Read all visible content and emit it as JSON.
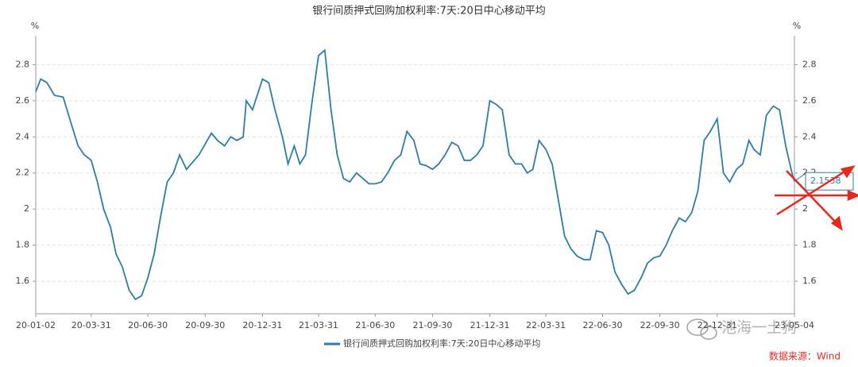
{
  "chart_data": {
    "type": "line",
    "title": "银行间质押式回购加权利率:7天:20日中心移动平均",
    "y_unit": "%",
    "y2_unit": "%",
    "x": [
      "20-01-02",
      "20-01-10",
      "20-01-20",
      "20-02-01",
      "20-02-15",
      "20-03-01",
      "20-03-10",
      "20-03-20",
      "20-03-31",
      "20-04-10",
      "20-04-20",
      "20-05-01",
      "20-05-10",
      "20-05-20",
      "20-05-31",
      "20-06-10",
      "20-06-20",
      "20-06-30",
      "20-07-10",
      "20-07-20",
      "20-07-31",
      "20-08-10",
      "20-08-20",
      "20-08-31",
      "20-09-10",
      "20-09-20",
      "20-09-30",
      "20-10-10",
      "20-10-20",
      "20-10-31",
      "20-11-10",
      "20-11-20",
      "20-11-30",
      "20-12-05",
      "20-12-15",
      "20-12-31",
      "21-01-10",
      "21-01-20",
      "21-02-01",
      "21-02-10",
      "21-02-20",
      "21-03-01",
      "21-03-10",
      "21-03-20",
      "21-03-31",
      "21-04-10",
      "21-04-20",
      "21-04-30",
      "21-05-10",
      "21-05-20",
      "21-05-31",
      "21-06-10",
      "21-06-20",
      "21-06-30",
      "21-07-10",
      "21-07-20",
      "21-07-31",
      "21-08-10",
      "21-08-20",
      "21-08-31",
      "21-09-10",
      "21-09-20",
      "21-09-30",
      "21-10-10",
      "21-10-20",
      "21-10-31",
      "21-11-10",
      "21-11-20",
      "21-11-30",
      "21-12-10",
      "21-12-20",
      "21-12-31",
      "22-01-10",
      "22-01-20",
      "22-01-31",
      "22-02-10",
      "22-02-20",
      "22-03-01",
      "22-03-10",
      "22-03-20",
      "22-03-31",
      "22-04-10",
      "22-04-20",
      "22-04-30",
      "22-05-10",
      "22-05-20",
      "22-05-31",
      "22-06-10",
      "22-06-20",
      "22-06-30",
      "22-07-10",
      "22-07-20",
      "22-07-31",
      "22-08-10",
      "22-08-20",
      "22-08-31",
      "22-09-10",
      "22-09-20",
      "22-09-30",
      "22-10-10",
      "22-10-20",
      "22-10-31",
      "22-11-10",
      "22-11-20",
      "22-11-30",
      "22-12-10",
      "22-12-20",
      "22-12-31",
      "23-01-10",
      "23-01-20",
      "23-01-31",
      "23-02-10",
      "23-02-20",
      "23-02-28",
      "23-03-10",
      "23-03-20",
      "23-03-31",
      "23-04-10",
      "23-04-20",
      "23-04-30",
      "23-05-04"
    ],
    "series": [
      {
        "name": "银行间质押式回购加权利率:7天:20日中心移动平均",
        "color": "#2e7ca8",
        "values": [
          2.65,
          2.72,
          2.7,
          2.63,
          2.62,
          2.45,
          2.35,
          2.3,
          2.27,
          2.15,
          2.0,
          1.9,
          1.75,
          1.68,
          1.55,
          1.5,
          1.52,
          1.62,
          1.75,
          1.95,
          2.15,
          2.2,
          2.3,
          2.22,
          2.26,
          2.3,
          2.36,
          2.42,
          2.38,
          2.35,
          2.4,
          2.38,
          2.4,
          2.6,
          2.55,
          2.72,
          2.7,
          2.55,
          2.4,
          2.25,
          2.35,
          2.25,
          2.3,
          2.58,
          2.85,
          2.88,
          2.55,
          2.3,
          2.17,
          2.15,
          2.2,
          2.17,
          2.14,
          2.14,
          2.15,
          2.2,
          2.27,
          2.3,
          2.43,
          2.38,
          2.25,
          2.24,
          2.22,
          2.25,
          2.3,
          2.37,
          2.35,
          2.27,
          2.27,
          2.3,
          2.35,
          2.6,
          2.58,
          2.55,
          2.3,
          2.25,
          2.25,
          2.2,
          2.22,
          2.38,
          2.33,
          2.25,
          2.05,
          1.85,
          1.78,
          1.74,
          1.72,
          1.72,
          1.88,
          1.87,
          1.8,
          1.65,
          1.58,
          1.53,
          1.55,
          1.62,
          1.7,
          1.73,
          1.74,
          1.8,
          1.88,
          1.95,
          1.93,
          1.98,
          2.1,
          2.38,
          2.43,
          2.5,
          2.2,
          2.15,
          2.22,
          2.25,
          2.38,
          2.33,
          2.3,
          2.52,
          2.57,
          2.55,
          2.35,
          2.2,
          2.1538
        ]
      }
    ],
    "end_label": "2.1538",
    "xlim": [
      "20-01-02",
      "23-05-04"
    ],
    "xticks": [
      "20-01-02",
      "20-03-31",
      "20-06-30",
      "20-09-30",
      "20-12-31",
      "21-03-31",
      "21-06-30",
      "21-09-30",
      "21-12-31",
      "22-03-31",
      "22-06-30",
      "22-09-30",
      "22-12-31",
      "23-05-04"
    ],
    "ylim": [
      1.42,
      2.96
    ],
    "yticks": [
      1.6,
      1.8,
      2,
      2.2,
      2.4,
      2.6,
      2.8
    ],
    "y2lim": [
      1.42,
      2.96
    ],
    "y2ticks": [
      1.6,
      1.8,
      2,
      2.2,
      2.4,
      2.6,
      2.8
    ],
    "grid": true,
    "source": "数据来源：Wind",
    "watermark": "池海一土狗"
  }
}
